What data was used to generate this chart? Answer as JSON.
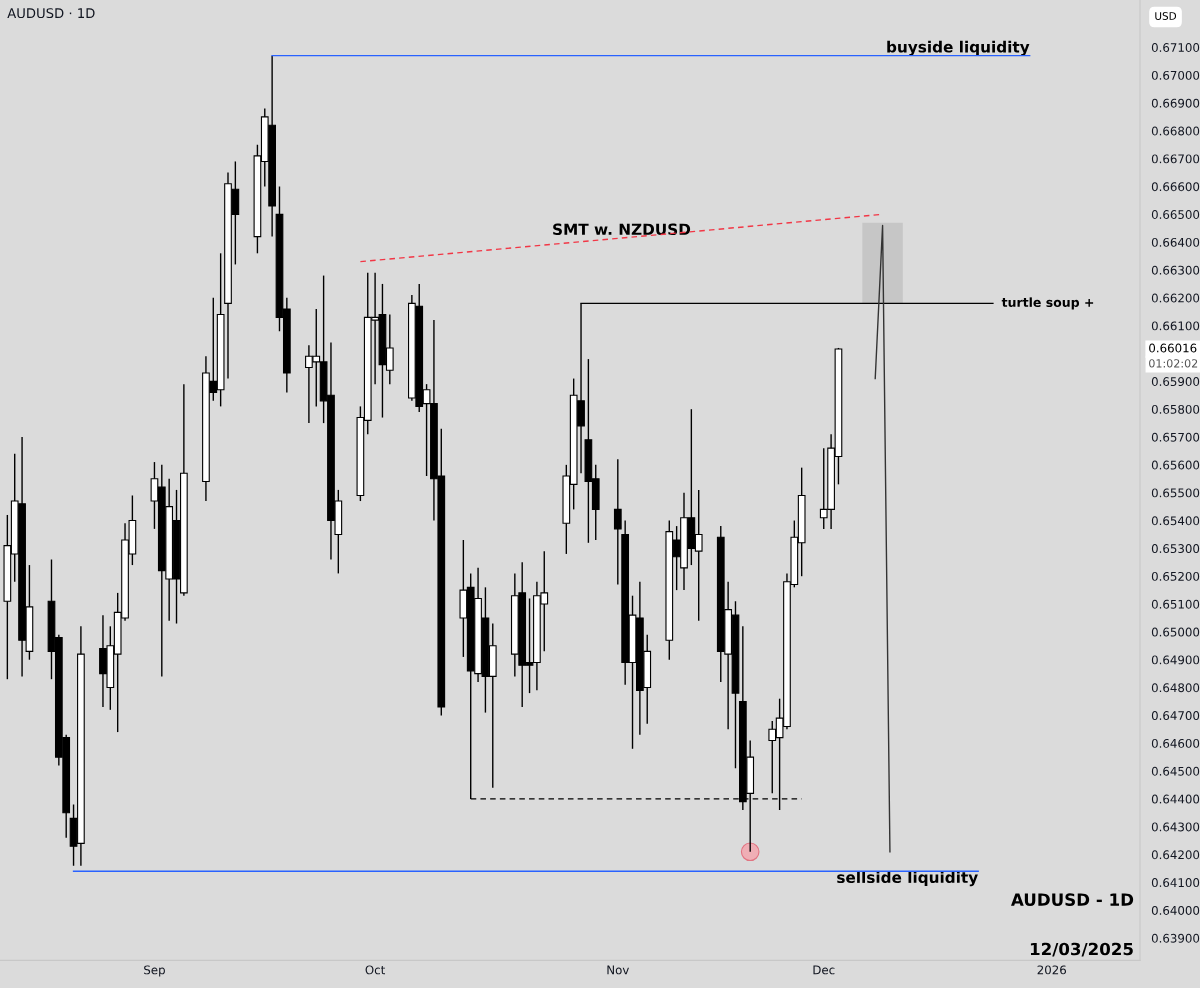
{
  "chart_data": {
    "type": "candlestick",
    "title": "AUDUSD · 1D",
    "annotations": [
      "AUDUSD - 1D",
      "12/03/2025",
      "USD",
      "0.66016",
      "01:02:02"
    ],
    "x": [
      "2025-08-12",
      "2025-08-13",
      "2025-08-14",
      "2025-08-15",
      "2025-08-18",
      "2025-08-19",
      "2025-08-20",
      "2025-08-21",
      "2025-08-22",
      "2025-08-25",
      "2025-08-26",
      "2025-08-27",
      "2025-08-28",
      "2025-08-29",
      "2025-09-01",
      "2025-09-02",
      "2025-09-03",
      "2025-09-04",
      "2025-09-05",
      "2025-09-08",
      "2025-09-09",
      "2025-09-10",
      "2025-09-11",
      "2025-09-12",
      "2025-09-15",
      "2025-09-16",
      "2025-09-17",
      "2025-09-18",
      "2025-09-19",
      "2025-09-22",
      "2025-09-23",
      "2025-09-24",
      "2025-09-25",
      "2025-09-26",
      "2025-09-29",
      "2025-09-30",
      "2025-10-01",
      "2025-10-02",
      "2025-10-03",
      "2025-10-06",
      "2025-10-07",
      "2025-10-08",
      "2025-10-09",
      "2025-10-10",
      "2025-10-13",
      "2025-10-14",
      "2025-10-15",
      "2025-10-16",
      "2025-10-17",
      "2025-10-20",
      "2025-10-21",
      "2025-10-22",
      "2025-10-23",
      "2025-10-24",
      "2025-10-27",
      "2025-10-28",
      "2025-10-29",
      "2025-10-30",
      "2025-10-31",
      "2025-11-03",
      "2025-11-04",
      "2025-11-05",
      "2025-11-06",
      "2025-11-07",
      "2025-11-10",
      "2025-11-11",
      "2025-11-12",
      "2025-11-13",
      "2025-11-14",
      "2025-11-17",
      "2025-11-18",
      "2025-11-19",
      "2025-11-20",
      "2025-11-21",
      "2025-11-24",
      "2025-11-25",
      "2025-11-26",
      "2025-11-27",
      "2025-11-28",
      "2025-12-01",
      "2025-12-02",
      "2025-12-03"
    ],
    "ohlc": [
      [
        0.6511,
        0.6542,
        0.6483,
        0.6531
      ],
      [
        0.6528,
        0.6564,
        0.6518,
        0.6547
      ],
      [
        0.6546,
        0.657,
        0.6484,
        0.6497
      ],
      [
        0.6493,
        0.6524,
        0.649,
        0.6509
      ],
      [
        0.6511,
        0.6526,
        0.6483,
        0.6493
      ],
      [
        0.6498,
        0.6499,
        0.6452,
        0.6455
      ],
      [
        0.6462,
        0.6463,
        0.6426,
        0.6435
      ],
      [
        0.6433,
        0.6438,
        0.6416,
        0.6423
      ],
      [
        0.6424,
        0.6502,
        0.6416,
        0.6492
      ],
      [
        0.6494,
        0.6506,
        0.6473,
        0.6485
      ],
      [
        0.648,
        0.6502,
        0.6472,
        0.6495
      ],
      [
        0.6492,
        0.6514,
        0.6464,
        0.6507
      ],
      [
        0.6505,
        0.6539,
        0.6504,
        0.6533
      ],
      [
        0.6528,
        0.6549,
        0.6524,
        0.654
      ],
      [
        0.6547,
        0.6561,
        0.6537,
        0.6555
      ],
      [
        0.6552,
        0.656,
        0.6484,
        0.6522
      ],
      [
        0.6519,
        0.6555,
        0.6504,
        0.6545
      ],
      [
        0.654,
        0.6551,
        0.6503,
        0.6519
      ],
      [
        0.6514,
        0.6589,
        0.6513,
        0.6557
      ],
      [
        0.6554,
        0.6599,
        0.6547,
        0.6593
      ],
      [
        0.659,
        0.662,
        0.6583,
        0.6586
      ],
      [
        0.6587,
        0.6636,
        0.6581,
        0.6614
      ],
      [
        0.6618,
        0.6665,
        0.6591,
        0.6661
      ],
      [
        0.6659,
        0.6669,
        0.6632,
        0.665
      ],
      [
        0.6642,
        0.6675,
        0.6636,
        0.6671
      ],
      [
        0.6669,
        0.6688,
        0.666,
        0.6685
      ],
      [
        0.6682,
        0.6707,
        0.6642,
        0.6653
      ],
      [
        0.665,
        0.666,
        0.6608,
        0.6613
      ],
      [
        0.6616,
        0.662,
        0.6586,
        0.6593
      ],
      [
        0.6595,
        0.6603,
        0.6575,
        0.6599
      ],
      [
        0.6597,
        0.6616,
        0.6581,
        0.6599
      ],
      [
        0.6597,
        0.6628,
        0.6575,
        0.6583
      ],
      [
        0.6585,
        0.6604,
        0.6526,
        0.654
      ],
      [
        0.6535,
        0.6551,
        0.6521,
        0.6547
      ],
      [
        0.6549,
        0.6581,
        0.6547,
        0.6577
      ],
      [
        0.6576,
        0.6629,
        0.6571,
        0.6613
      ],
      [
        0.6612,
        0.6629,
        0.6589,
        0.6613
      ],
      [
        0.6614,
        0.6625,
        0.6577,
        0.6596
      ],
      [
        0.6594,
        0.6614,
        0.6589,
        0.6602
      ],
      [
        0.6584,
        0.6621,
        0.6583,
        0.6618
      ],
      [
        0.6617,
        0.6625,
        0.6579,
        0.6581
      ],
      [
        0.6582,
        0.6589,
        0.6556,
        0.6587
      ],
      [
        0.6582,
        0.6612,
        0.654,
        0.6555
      ],
      [
        0.6556,
        0.6573,
        0.647,
        0.6473
      ],
      [
        0.6505,
        0.6533,
        0.6491,
        0.6515
      ],
      [
        0.6516,
        0.6521,
        0.644,
        0.6486
      ],
      [
        0.6485,
        0.6523,
        0.6482,
        0.6512
      ],
      [
        0.6505,
        0.6516,
        0.6471,
        0.6484
      ],
      [
        0.6484,
        0.6503,
        0.6444,
        0.6495
      ],
      [
        0.6492,
        0.6521,
        0.6484,
        0.6513
      ],
      [
        0.6514,
        0.6525,
        0.6473,
        0.6488
      ],
      [
        0.6489,
        0.6512,
        0.6478,
        0.6488
      ],
      [
        0.6489,
        0.6518,
        0.6479,
        0.6513
      ],
      [
        0.651,
        0.6529,
        0.6493,
        0.6514
      ],
      [
        0.6539,
        0.656,
        0.6528,
        0.6556
      ],
      [
        0.6553,
        0.6591,
        0.6544,
        0.6585
      ],
      [
        0.6583,
        0.6618,
        0.6557,
        0.6574
      ],
      [
        0.6569,
        0.6598,
        0.6532,
        0.6554
      ],
      [
        0.6555,
        0.656,
        0.6533,
        0.6544
      ],
      [
        0.6544,
        0.6562,
        0.6517,
        0.6537
      ],
      [
        0.6535,
        0.654,
        0.6481,
        0.6489
      ],
      [
        0.6489,
        0.6513,
        0.6458,
        0.6506
      ],
      [
        0.6505,
        0.6518,
        0.6463,
        0.6479
      ],
      [
        0.648,
        0.6499,
        0.6467,
        0.6493
      ],
      [
        0.6497,
        0.654,
        0.649,
        0.6536
      ],
      [
        0.6533,
        0.6538,
        0.6515,
        0.6527
      ],
      [
        0.6523,
        0.655,
        0.6515,
        0.6541
      ],
      [
        0.6541,
        0.658,
        0.6524,
        0.653
      ],
      [
        0.6529,
        0.6551,
        0.6504,
        0.6535
      ],
      [
        0.6534,
        0.6538,
        0.6482,
        0.6493
      ],
      [
        0.6492,
        0.6518,
        0.6465,
        0.6508
      ],
      [
        0.6506,
        0.6511,
        0.6451,
        0.6478
      ],
      [
        0.6475,
        0.6502,
        0.6436,
        0.6439
      ],
      [
        0.6442,
        0.6461,
        0.6421,
        0.6455
      ],
      [
        0.6461,
        0.6468,
        0.6442,
        0.6465
      ],
      [
        0.6462,
        0.6476,
        0.6436,
        0.6469
      ],
      [
        0.6466,
        0.6521,
        0.6465,
        0.6518
      ],
      [
        0.6517,
        0.654,
        0.6516,
        0.6534
      ],
      [
        0.6532,
        0.6559,
        0.652,
        0.6549
      ],
      [
        0.6541,
        0.6566,
        0.6537,
        0.6544
      ],
      [
        0.6544,
        0.6571,
        0.6537,
        0.6566
      ],
      [
        0.6563,
        0.6602,
        0.6553,
        0.66016
      ]
    ],
    "series": [
      {
        "type": "line",
        "name": "buyside liquidity",
        "color": "#2962ff",
        "x": [
          "2025-09-17",
          "2025-12-29"
        ],
        "values": [
          0.6707,
          0.6707
        ]
      },
      {
        "type": "line",
        "name": "sellside liquidity",
        "color": "#2962ff",
        "x": [
          "2025-08-21",
          "2025-12-22"
        ],
        "values": [
          0.6414,
          0.6414
        ]
      },
      {
        "type": "line",
        "name": "SMT w. NZDUSD",
        "color": "#f23645",
        "line_style": "dashed",
        "x": [
          "2025-09-29",
          "2025-12-09"
        ],
        "values": [
          0.6633,
          0.665
        ]
      },
      {
        "type": "line",
        "name": "turtle soup +",
        "color": "#000000",
        "x": [
          "2025-10-29",
          "2025-12-24"
        ],
        "values": [
          0.6618,
          0.6618
        ]
      },
      {
        "type": "line",
        "color": "#000000",
        "line_style": "dashed",
        "x": [
          "2025-10-14",
          "2025-11-28"
        ],
        "values": [
          0.644,
          0.644
        ]
      },
      {
        "type": "line",
        "color": "#333333",
        "x": [
          "2025-12-08",
          "2025-12-09",
          "2025-12-10"
        ],
        "values": [
          0.6591,
          0.6646,
          0.6421
        ]
      },
      {
        "type": "scatter",
        "color": "#f4a3ab",
        "x": [
          "2025-11-21"
        ],
        "values": [
          0.6421
        ]
      },
      {
        "type": "bar",
        "color": "#c6c6c6",
        "x": [
          "2025-12-09"
        ],
        "base": [
          0.6618
        ],
        "values": [
          0.0029
        ]
      }
    ],
    "xlim": [
      "2025-08-11",
      "2026-01-13"
    ],
    "xticks": [
      {
        "value": "2025-09-01",
        "label": "Sep"
      },
      {
        "value": "2025-10-01",
        "label": "Oct"
      },
      {
        "value": "2025-11-03",
        "label": "Nov"
      },
      {
        "value": "2025-12-01",
        "label": "Dec"
      },
      {
        "value": "2026-01-01",
        "label": "2026"
      }
    ],
    "ylim": [
      0.6382,
      0.6727
    ],
    "yticks": [
      {
        "value": 0.639,
        "label": "0.63900"
      },
      {
        "value": 0.64,
        "label": "0.64000"
      },
      {
        "value": 0.641,
        "label": "0.64100"
      },
      {
        "value": 0.642,
        "label": "0.64200"
      },
      {
        "value": 0.643,
        "label": "0.64300"
      },
      {
        "value": 0.644,
        "label": "0.64400"
      },
      {
        "value": 0.645,
        "label": "0.64500"
      },
      {
        "value": 0.646,
        "label": "0.64600"
      },
      {
        "value": 0.647,
        "label": "0.64700"
      },
      {
        "value": 0.648,
        "label": "0.64800"
      },
      {
        "value": 0.649,
        "label": "0.64900"
      },
      {
        "value": 0.65,
        "label": "0.65000"
      },
      {
        "value": 0.651,
        "label": "0.65100"
      },
      {
        "value": 0.652,
        "label": "0.65200"
      },
      {
        "value": 0.653,
        "label": "0.65300"
      },
      {
        "value": 0.654,
        "label": "0.65400"
      },
      {
        "value": 0.655,
        "label": "0.65500"
      },
      {
        "value": 0.656,
        "label": "0.65600"
      },
      {
        "value": 0.657,
        "label": "0.65700"
      },
      {
        "value": 0.658,
        "label": "0.65800"
      },
      {
        "value": 0.659,
        "label": "0.65900"
      },
      {
        "value": 0.661,
        "label": "0.66100"
      },
      {
        "value": 0.662,
        "label": "0.66200"
      },
      {
        "value": 0.663,
        "label": "0.66300"
      },
      {
        "value": 0.664,
        "label": "0.66400"
      },
      {
        "value": 0.665,
        "label": "0.66500"
      },
      {
        "value": 0.666,
        "label": "0.66600"
      },
      {
        "value": 0.667,
        "label": "0.66700"
      },
      {
        "value": 0.668,
        "label": "0.66800"
      },
      {
        "value": 0.669,
        "label": "0.66900"
      },
      {
        "value": 0.67,
        "label": "0.67000"
      },
      {
        "value": 0.671,
        "label": "0.67100"
      }
    ],
    "grid": false,
    "legend": false
  }
}
